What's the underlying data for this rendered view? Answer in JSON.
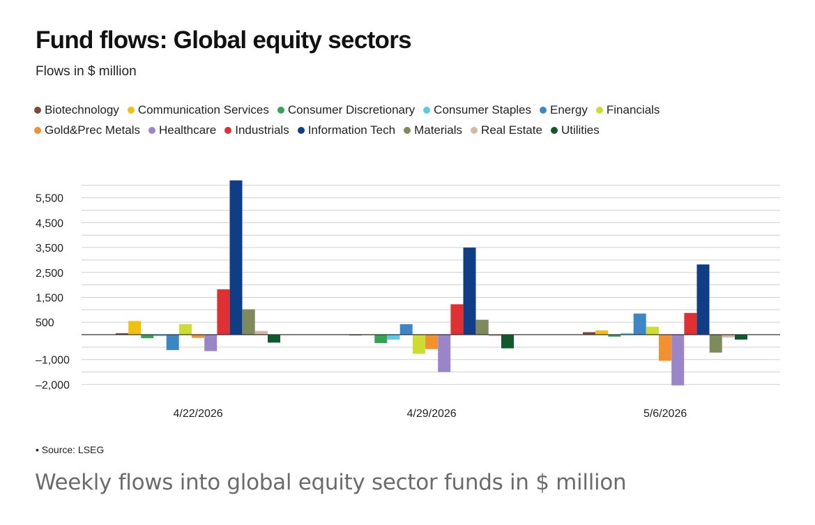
{
  "header": {
    "title": "Fund flows: Global equity sectors",
    "subtitle": "Flows in $ million"
  },
  "footer": {
    "source": "• Source: LSEG",
    "caption": "Weekly flows into global equity sector funds in $ million"
  },
  "chart_data": {
    "type": "bar",
    "title": "Fund flows: Global equity sectors",
    "subtitle": "Flows in $ million",
    "ylim": [
      -2000,
      6200
    ],
    "yticks": [
      -2000,
      -1000,
      500,
      1500,
      2500,
      3500,
      4500,
      5500
    ],
    "ytick_labels": [
      "–2,000",
      "–1,000",
      "500",
      "1,500",
      "2,500",
      "3,500",
      "4,500",
      "5,500"
    ],
    "grid": true,
    "legend": "top",
    "categories": [
      "4/22/2026",
      "4/29/2026",
      "5/6/2026"
    ],
    "series": [
      {
        "name": "Biotechnology",
        "color": "#7b4b3a",
        "values": [
          60,
          -30,
          100
        ]
      },
      {
        "name": "Communication Services",
        "color": "#f2c00f",
        "values": [
          550,
          0,
          170
        ]
      },
      {
        "name": "Consumer Discretionary",
        "color": "#33a454",
        "values": [
          -140,
          -340,
          -80
        ]
      },
      {
        "name": "Consumer Staples",
        "color": "#5bc9ee",
        "values": [
          -60,
          -200,
          60
        ]
      },
      {
        "name": "Energy",
        "color": "#3c86c6",
        "values": [
          -620,
          420,
          850
        ]
      },
      {
        "name": "Financials",
        "color": "#cddc31",
        "values": [
          420,
          -770,
          320
        ]
      },
      {
        "name": "Gold&Prec Metals",
        "color": "#f39030",
        "values": [
          -130,
          -580,
          -1050
        ]
      },
      {
        "name": "Healthcare",
        "color": "#9b85c9",
        "values": [
          -660,
          -1500,
          -2040
        ]
      },
      {
        "name": "Industrials",
        "color": "#df3132",
        "values": [
          1820,
          1220,
          870
        ]
      },
      {
        "name": "Information Tech",
        "color": "#0f3d86",
        "values": [
          6200,
          3500,
          2820
        ]
      },
      {
        "name": "Materials",
        "color": "#7e8a5b",
        "values": [
          1020,
          600,
          -720
        ]
      },
      {
        "name": "Real Estate",
        "color": "#d3b9a3",
        "values": [
          150,
          -60,
          -110
        ]
      },
      {
        "name": "Utilities",
        "color": "#0f5a2a",
        "values": [
          -320,
          -550,
          -200
        ]
      }
    ]
  }
}
